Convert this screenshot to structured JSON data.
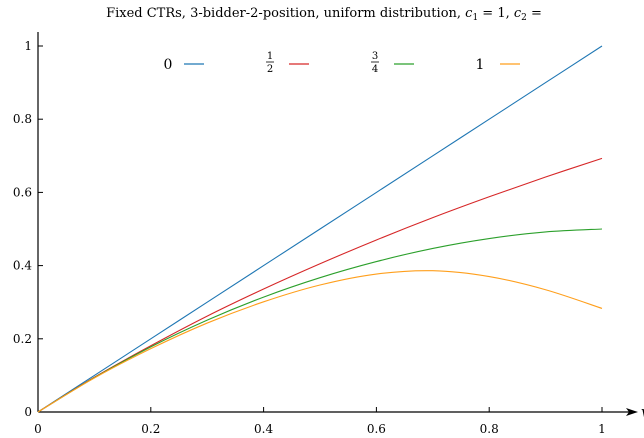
{
  "chart_data": {
    "type": "line",
    "title": {
      "text": "Fixed CTRs, 3-bidder-2-position, uniform distribution, ",
      "math_c1": "c",
      "sub1": "1",
      "eq1": " = 1, ",
      "math_c2": "c",
      "sub2": "2",
      "eq2": " ="
    },
    "xlabel": "v",
    "ylabel": "",
    "xlim": [
      0,
      1
    ],
    "ylim": [
      0,
      1
    ],
    "x_ticks": [
      "0",
      "0.2",
      "0.4",
      "0.6",
      "0.8",
      "1"
    ],
    "y_ticks": [
      "0",
      "0.2",
      "0.4",
      "0.6",
      "0.8",
      "1"
    ],
    "legend_placement": "top",
    "series": [
      {
        "name": "0",
        "label_num": "",
        "label_den": "",
        "color": "#1f77b4",
        "x": [
          0,
          0.1,
          0.2,
          0.3,
          0.4,
          0.5,
          0.6,
          0.7,
          0.8,
          0.9,
          1.0
        ],
        "y": [
          0,
          0.1,
          0.2,
          0.3,
          0.4,
          0.5,
          0.6,
          0.7,
          0.8,
          0.9,
          1.0
        ]
      },
      {
        "name": "",
        "label_num": "1",
        "label_den": "2",
        "color": "#d62728",
        "x": [
          0,
          0.1,
          0.2,
          0.3,
          0.4,
          0.5,
          0.6,
          0.7,
          0.8,
          0.9,
          1.0
        ],
        "y": [
          0,
          0.095,
          0.181,
          0.262,
          0.336,
          0.405,
          0.47,
          0.531,
          0.588,
          0.642,
          0.693
        ]
      },
      {
        "name": "",
        "label_num": "3",
        "label_den": "4",
        "color": "#2ca02c",
        "x": [
          0,
          0.1,
          0.2,
          0.3,
          0.4,
          0.5,
          0.6,
          0.7,
          0.8,
          0.9,
          1.0
        ],
        "y": [
          0,
          0.094,
          0.178,
          0.251,
          0.314,
          0.367,
          0.411,
          0.447,
          0.474,
          0.492,
          0.5
        ]
      },
      {
        "name": "1",
        "label_num": "",
        "label_den": "",
        "color": "#ff9f1c",
        "x": [
          0,
          0.1,
          0.2,
          0.3,
          0.4,
          0.5,
          0.6,
          0.7,
          0.8,
          0.9,
          1.0
        ],
        "y": [
          0,
          0.093,
          0.173,
          0.243,
          0.301,
          0.347,
          0.377,
          0.386,
          0.37,
          0.334,
          0.283
        ]
      }
    ]
  }
}
